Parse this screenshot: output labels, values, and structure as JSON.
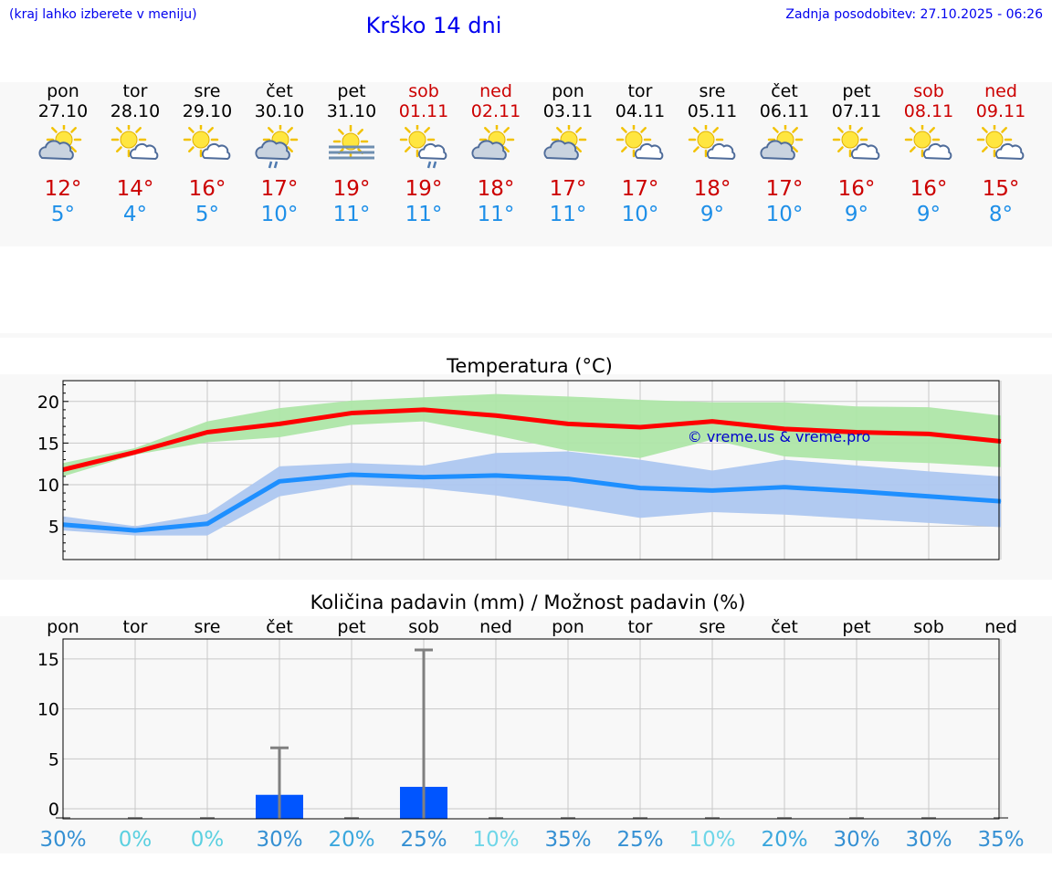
{
  "header": {
    "menu_hint": "(kraj lahko izberete v meniju)",
    "title": "Krško 14 dni",
    "updated": "Zadnja posodobitev: 27.10.2025 - 06:26"
  },
  "colors": {
    "link": "#0000ee",
    "weekend": "#cc0000",
    "max_temp": "#cc0000",
    "min_temp": "#1e8fe8",
    "max_line": "#ff0000",
    "max_band": "#aee6a8",
    "min_line": "#1e8fff",
    "min_band": "#adc7f0",
    "precip_bar": "#0055ff"
  },
  "days": [
    {
      "name": "pon",
      "date": "27.10",
      "weekend": false,
      "icon": "partly-cloudy-icon",
      "max": "12°",
      "min": "5°"
    },
    {
      "name": "tor",
      "date": "28.10",
      "weekend": false,
      "icon": "sun-cloud-icon",
      "max": "14°",
      "min": "4°"
    },
    {
      "name": "sre",
      "date": "29.10",
      "weekend": false,
      "icon": "sun-cloud-icon",
      "max": "16°",
      "min": "5°"
    },
    {
      "name": "čet",
      "date": "30.10",
      "weekend": false,
      "icon": "partly-cloudy-rain-icon",
      "max": "17°",
      "min": "10°"
    },
    {
      "name": "pet",
      "date": "31.10",
      "weekend": false,
      "icon": "sun-fog-icon",
      "max": "19°",
      "min": "11°"
    },
    {
      "name": "sob",
      "date": "01.11",
      "weekend": true,
      "icon": "sun-cloud-rain-icon",
      "max": "19°",
      "min": "11°"
    },
    {
      "name": "ned",
      "date": "02.11",
      "weekend": true,
      "icon": "partly-cloudy-icon",
      "max": "18°",
      "min": "11°"
    },
    {
      "name": "pon",
      "date": "03.11",
      "weekend": false,
      "icon": "partly-cloudy-icon",
      "max": "17°",
      "min": "11°"
    },
    {
      "name": "tor",
      "date": "04.11",
      "weekend": false,
      "icon": "sun-cloud-icon",
      "max": "17°",
      "min": "10°"
    },
    {
      "name": "sre",
      "date": "05.11",
      "weekend": false,
      "icon": "sun-cloud-icon",
      "max": "18°",
      "min": "9°"
    },
    {
      "name": "čet",
      "date": "06.11",
      "weekend": false,
      "icon": "partly-cloudy-icon",
      "max": "17°",
      "min": "10°"
    },
    {
      "name": "pet",
      "date": "07.11",
      "weekend": false,
      "icon": "sun-cloud-icon",
      "max": "16°",
      "min": "9°"
    },
    {
      "name": "sob",
      "date": "08.11",
      "weekend": true,
      "icon": "sun-cloud-icon",
      "max": "16°",
      "min": "9°"
    },
    {
      "name": "ned",
      "date": "09.11",
      "weekend": true,
      "icon": "sun-cloud-icon",
      "max": "15°",
      "min": "8°"
    }
  ],
  "chart_data": [
    {
      "type": "line",
      "title": "Temperatura (°C)",
      "xlabel": "",
      "ylabel": "",
      "ylim": [
        1,
        22.5
      ],
      "yticks": [
        5,
        10,
        15,
        20
      ],
      "grid": true,
      "x": [
        0,
        1,
        2,
        3,
        4,
        5,
        6,
        7,
        8,
        9,
        10,
        11,
        12,
        13
      ],
      "watermark": "© vreme.us & vreme.pro",
      "series": [
        {
          "name": "max",
          "values": [
            11.8,
            13.9,
            16.3,
            17.3,
            18.6,
            19.0,
            18.3,
            17.3,
            16.9,
            17.6,
            16.7,
            16.3,
            16.1,
            15.2
          ],
          "band_low": [
            11.0,
            13.6,
            15.1,
            15.7,
            17.2,
            17.6,
            15.9,
            14.1,
            13.2,
            15.4,
            13.4,
            12.9,
            12.6,
            12.1
          ],
          "band_high": [
            12.6,
            14.4,
            17.6,
            19.2,
            20.1,
            20.5,
            20.9,
            20.6,
            20.2,
            19.9,
            19.9,
            19.4,
            19.3,
            18.3
          ]
        },
        {
          "name": "min",
          "values": [
            5.2,
            4.5,
            5.3,
            10.4,
            11.2,
            10.9,
            11.1,
            10.7,
            9.6,
            9.3,
            9.7,
            9.2,
            8.6,
            8.0
          ],
          "band_low": [
            4.5,
            3.9,
            3.9,
            8.6,
            10.0,
            9.6,
            8.7,
            7.4,
            6.0,
            6.7,
            6.4,
            5.9,
            5.4,
            4.9
          ],
          "band_high": [
            6.2,
            5.0,
            6.5,
            12.2,
            12.6,
            12.3,
            13.8,
            14.0,
            13.0,
            11.7,
            13.0,
            12.3,
            11.6,
            11.0
          ]
        }
      ]
    },
    {
      "type": "bar",
      "title": "Količina padavin (mm) / Možnost padavin (%)",
      "xlabel": "",
      "ylabel": "",
      "ylim": [
        -1,
        17
      ],
      "yticks": [
        0,
        5,
        10,
        15
      ],
      "grid": true,
      "categories": [
        "pon",
        "tor",
        "sre",
        "čet",
        "pet",
        "sob",
        "ned",
        "pon",
        "tor",
        "sre",
        "čet",
        "pet",
        "sob",
        "ned"
      ],
      "values": [
        0,
        0,
        0,
        1.4,
        0,
        2.2,
        0,
        0,
        0,
        0,
        0,
        0,
        0,
        0
      ],
      "error_high": [
        0,
        0,
        0,
        6.1,
        0,
        15.9,
        0,
        0,
        0,
        0,
        0,
        0,
        0,
        0
      ],
      "probability": [
        "30%",
        "0%",
        "0%",
        "30%",
        "20%",
        "25%",
        "10%",
        "35%",
        "25%",
        "10%",
        "20%",
        "30%",
        "30%",
        "35%"
      ],
      "probability_values": [
        30,
        0,
        0,
        30,
        20,
        25,
        10,
        35,
        25,
        10,
        20,
        30,
        30,
        35
      ]
    }
  ]
}
